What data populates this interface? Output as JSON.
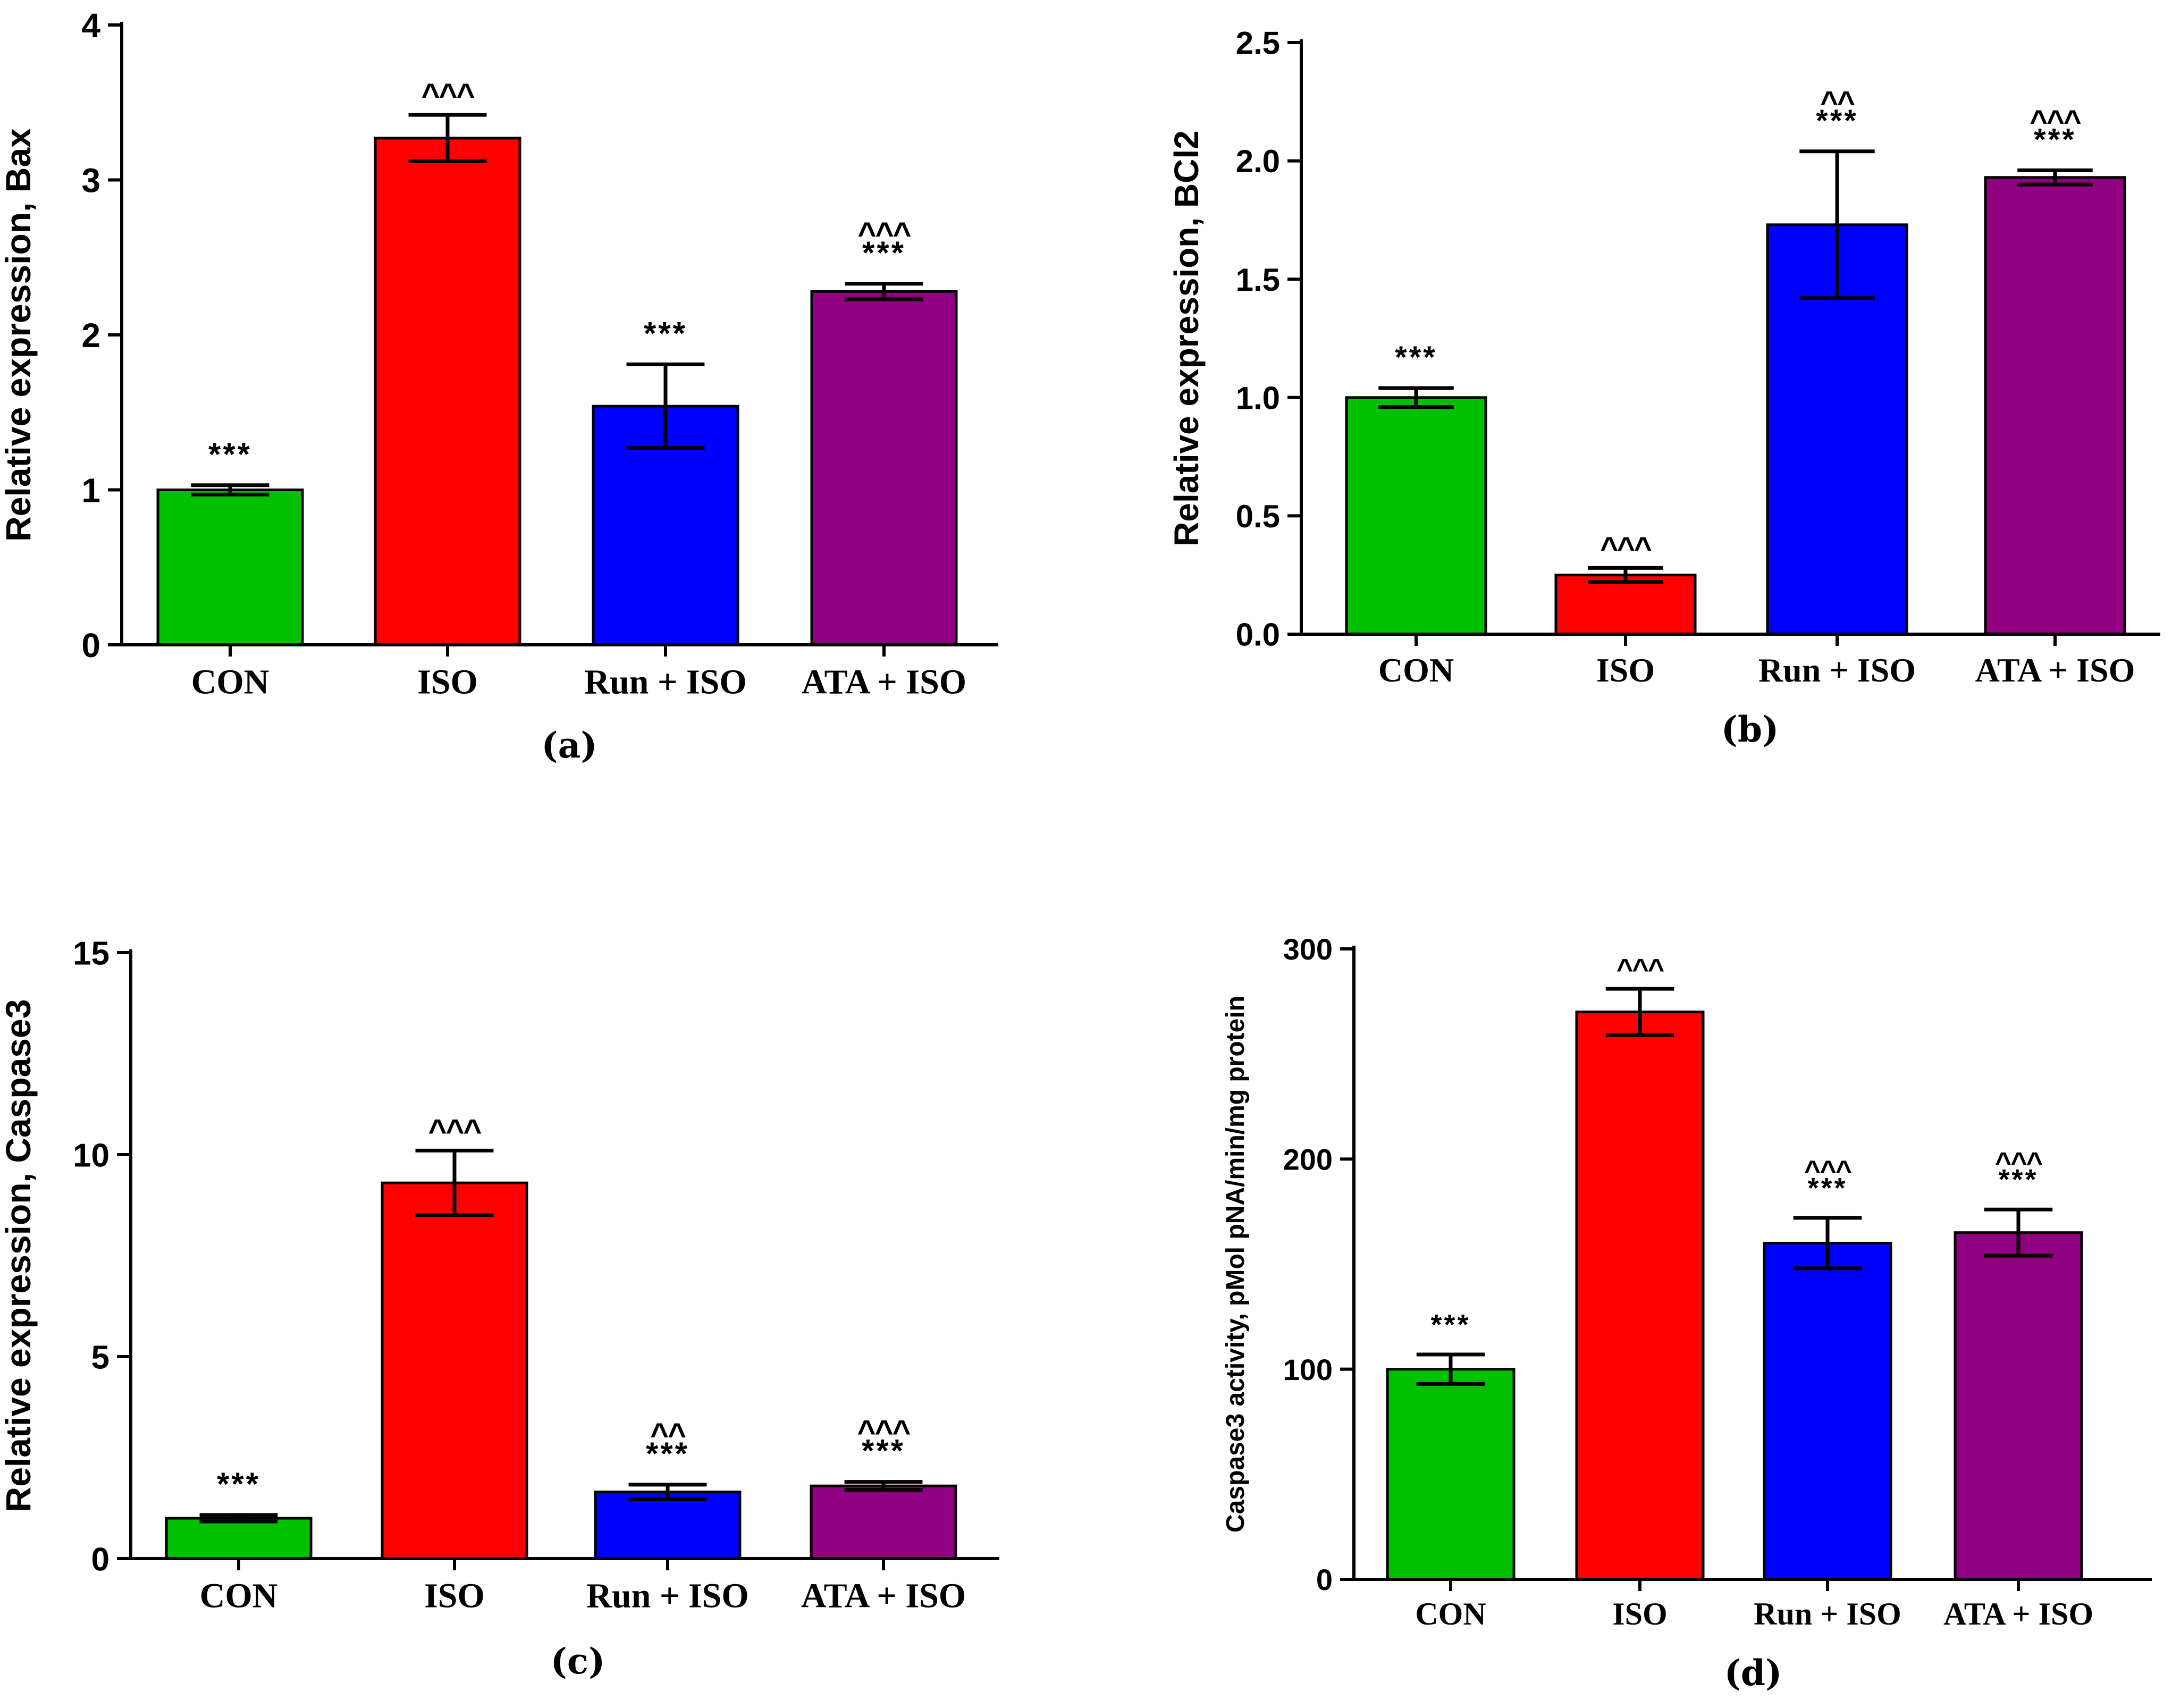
{
  "colors": {
    "CON": "#00c000",
    "ISO": "#ff0000",
    "Run + ISO": "#0000ff",
    "ATA + ISO": "#900080",
    "axis": "#000000"
  },
  "chart_data": [
    {
      "type": "bar",
      "panel_label": "(a)",
      "ylabel": "Relative expression, Bax",
      "categories": [
        "CON",
        "ISO",
        "Run + ISO",
        "ATA + ISO"
      ],
      "values": [
        1.0,
        3.27,
        1.54,
        2.28
      ],
      "errors": [
        0.03,
        0.15,
        0.27,
        0.05
      ],
      "ylim": [
        0,
        4
      ],
      "yticks": [
        0,
        1,
        2,
        3,
        4
      ],
      "ytick_labels": [
        "0",
        "1",
        "2",
        "3",
        "4"
      ],
      "annotations": [
        [
          "***"
        ],
        [
          "^^^"
        ],
        [
          "***"
        ],
        [
          "^^^",
          "***"
        ]
      ]
    },
    {
      "type": "bar",
      "panel_label": "(b)",
      "ylabel": "Relative expression, BCl2",
      "categories": [
        "CON",
        "ISO",
        "Run + ISO",
        "ATA + ISO"
      ],
      "values": [
        1.0,
        0.25,
        1.73,
        1.93
      ],
      "errors": [
        0.04,
        0.03,
        0.31,
        0.03
      ],
      "ylim": [
        0,
        2.5
      ],
      "yticks": [
        0,
        0.5,
        1.0,
        1.5,
        2.0,
        2.5
      ],
      "ytick_labels": [
        "0.0",
        "0.5",
        "1.0",
        "1.5",
        "2.0",
        "2.5"
      ],
      "annotations": [
        [
          "***"
        ],
        [
          "^^^"
        ],
        [
          "^^",
          "***"
        ],
        [
          "^^^",
          "***"
        ]
      ]
    },
    {
      "type": "bar",
      "panel_label": "(c)",
      "ylabel": "Relative expression, Caspase3",
      "categories": [
        "CON",
        "ISO",
        "Run + ISO",
        "ATA + ISO"
      ],
      "values": [
        1.0,
        9.3,
        1.65,
        1.8
      ],
      "errors": [
        0.08,
        0.8,
        0.18,
        0.1
      ],
      "ylim": [
        0,
        15
      ],
      "yticks": [
        0,
        5,
        10,
        15
      ],
      "ytick_labels": [
        "0",
        "5",
        "10",
        "15"
      ],
      "annotations": [
        [
          "***"
        ],
        [
          "^^^"
        ],
        [
          "^^",
          "***"
        ],
        [
          "^^^",
          "***"
        ]
      ]
    },
    {
      "type": "bar",
      "panel_label": "(d)",
      "ylabel": "Caspase3 activity, pMol pNA/min/mg protein",
      "categories": [
        "CON",
        "ISO",
        "Run + ISO",
        "ATA + ISO"
      ],
      "values": [
        100,
        270,
        160,
        165
      ],
      "errors": [
        7,
        11,
        12,
        11
      ],
      "ylim": [
        0,
        300
      ],
      "yticks": [
        0,
        100,
        200,
        300
      ],
      "ytick_labels": [
        "0",
        "100",
        "200",
        "300"
      ],
      "annotations": [
        [
          "***"
        ],
        [
          "^^^"
        ],
        [
          "^^^",
          "***"
        ],
        [
          "^^^",
          "***"
        ]
      ]
    }
  ]
}
